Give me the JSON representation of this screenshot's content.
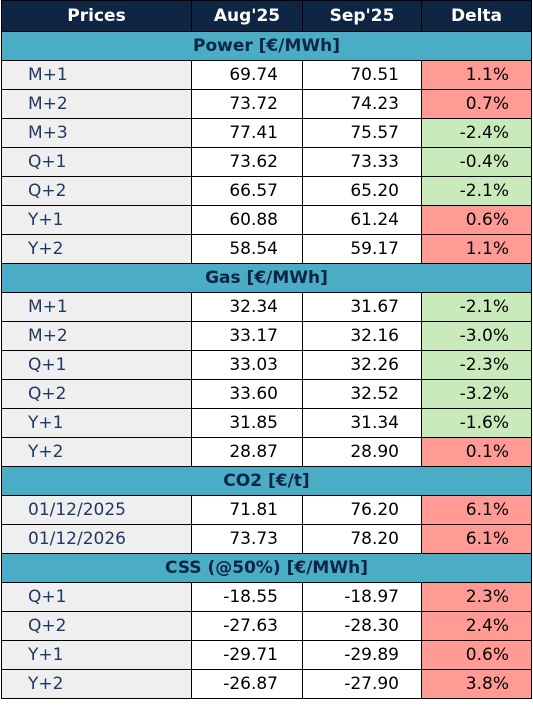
{
  "header": {
    "col_label": "Prices",
    "col_prev": "Aug'25",
    "col_curr": "Sep'25",
    "col_delta": "Delta"
  },
  "colors": {
    "header_bg": "#0f2544",
    "section_bg": "#4bacc6",
    "increase_bg": "#ff9b94",
    "decrease_bg": "#c9eabb"
  },
  "sections": [
    {
      "title": "Power [€/MWh]",
      "rows": [
        {
          "label": "M+1",
          "prev": "69.74",
          "curr": "70.51",
          "delta": "1.1%",
          "direction": "up"
        },
        {
          "label": "M+2",
          "prev": "73.72",
          "curr": "74.23",
          "delta": "0.7%",
          "direction": "up"
        },
        {
          "label": "M+3",
          "prev": "77.41",
          "curr": "75.57",
          "delta": "-2.4%",
          "direction": "down"
        },
        {
          "label": "Q+1",
          "prev": "73.62",
          "curr": "73.33",
          "delta": "-0.4%",
          "direction": "down"
        },
        {
          "label": "Q+2",
          "prev": "66.57",
          "curr": "65.20",
          "delta": "-2.1%",
          "direction": "down"
        },
        {
          "label": "Y+1",
          "prev": "60.88",
          "curr": "61.24",
          "delta": "0.6%",
          "direction": "up"
        },
        {
          "label": "Y+2",
          "prev": "58.54",
          "curr": "59.17",
          "delta": "1.1%",
          "direction": "up"
        }
      ]
    },
    {
      "title": "Gas [€/MWh]",
      "rows": [
        {
          "label": "M+1",
          "prev": "32.34",
          "curr": "31.67",
          "delta": "-2.1%",
          "direction": "down"
        },
        {
          "label": "M+2",
          "prev": "33.17",
          "curr": "32.16",
          "delta": "-3.0%",
          "direction": "down"
        },
        {
          "label": "Q+1",
          "prev": "33.03",
          "curr": "32.26",
          "delta": "-2.3%",
          "direction": "down"
        },
        {
          "label": "Q+2",
          "prev": "33.60",
          "curr": "32.52",
          "delta": "-3.2%",
          "direction": "down"
        },
        {
          "label": "Y+1",
          "prev": "31.85",
          "curr": "31.34",
          "delta": "-1.6%",
          "direction": "down"
        },
        {
          "label": "Y+2",
          "prev": "28.87",
          "curr": "28.90",
          "delta": "0.1%",
          "direction": "up"
        }
      ]
    },
    {
      "title": "CO2 [€/t]",
      "rows": [
        {
          "label": "01/12/2025",
          "prev": "71.81",
          "curr": "76.20",
          "delta": "6.1%",
          "direction": "up"
        },
        {
          "label": "01/12/2026",
          "prev": "73.73",
          "curr": "78.20",
          "delta": "6.1%",
          "direction": "up"
        }
      ]
    },
    {
      "title": "CSS (@50%) [€/MWh]",
      "rows": [
        {
          "label": "Q+1",
          "prev": "-18.55",
          "curr": "-18.97",
          "delta": "2.3%",
          "direction": "up"
        },
        {
          "label": "Q+2",
          "prev": "-27.63",
          "curr": "-28.30",
          "delta": "2.4%",
          "direction": "up"
        },
        {
          "label": "Y+1",
          "prev": "-29.71",
          "curr": "-29.89",
          "delta": "0.6%",
          "direction": "up"
        },
        {
          "label": "Y+2",
          "prev": "-26.87",
          "curr": "-27.90",
          "delta": "3.8%",
          "direction": "up"
        }
      ]
    }
  ]
}
